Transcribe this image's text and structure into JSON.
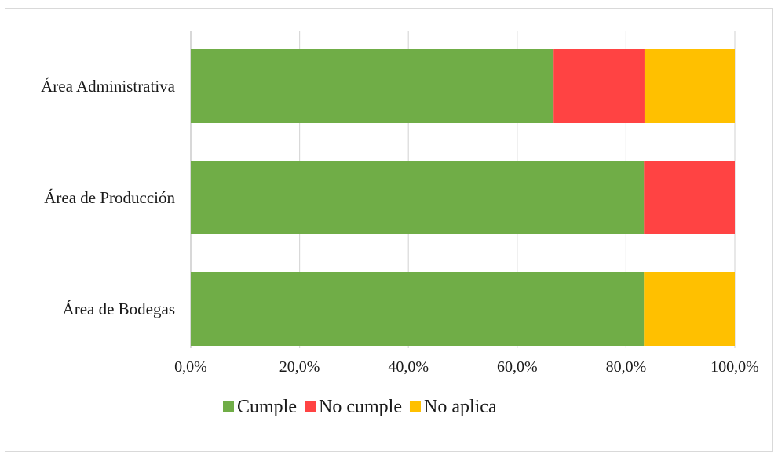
{
  "chart_data": {
    "type": "bar",
    "orientation": "horizontal",
    "stacked": true,
    "categories": [
      "Área Administrativa",
      "Área de Producción",
      "Área de Bodegas"
    ],
    "series": [
      {
        "name": "Cumple",
        "color": "#70AD47",
        "values": [
          66.7,
          83.3,
          83.3
        ]
      },
      {
        "name": "No cumple",
        "color": "#FF4343",
        "values": [
          16.7,
          16.7,
          0
        ]
      },
      {
        "name": "No aplica",
        "color": "#FFC000",
        "values": [
          16.6,
          0,
          16.7
        ]
      }
    ],
    "xlim": [
      0,
      100
    ],
    "xticks": [
      0,
      20,
      40,
      60,
      80,
      100
    ],
    "xtick_labels": [
      "0,0%",
      "20,0%",
      "40,0%",
      "60,0%",
      "80,0%",
      "100,0%"
    ],
    "grid": "vertical",
    "legend_position": "bottom",
    "title": "",
    "xlabel": "",
    "ylabel": ""
  }
}
